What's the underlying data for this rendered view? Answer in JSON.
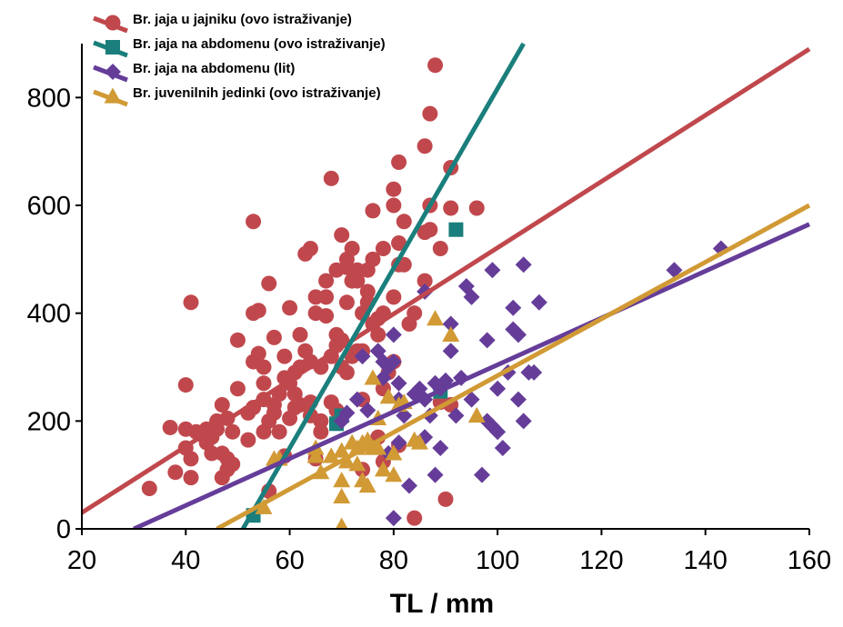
{
  "chart_data": {
    "type": "scatter",
    "title": "",
    "xlabel": "TL / mm",
    "ylabel": "",
    "xlim": [
      20,
      160
    ],
    "ylim": [
      0,
      900
    ],
    "xticks": [
      20,
      40,
      60,
      80,
      100,
      120,
      140,
      160
    ],
    "yticks": [
      0,
      200,
      400,
      600,
      800
    ],
    "grid": false,
    "legend_position": "top-left",
    "series": [
      {
        "name": "Br. jaja u jajniku (ovo istraživanje)",
        "color": "#c0484d",
        "marker": "circle",
        "fit": {
          "x": [
            20,
            160
          ],
          "y": [
            30,
            890
          ]
        },
        "points": [
          [
            33,
            75
          ],
          [
            37,
            188
          ],
          [
            38,
            105
          ],
          [
            40,
            150
          ],
          [
            40,
            185
          ],
          [
            40,
            267
          ],
          [
            41,
            130
          ],
          [
            41,
            420
          ],
          [
            41,
            95
          ],
          [
            42,
            180
          ],
          [
            43,
            175
          ],
          [
            44,
            160
          ],
          [
            44,
            185
          ],
          [
            45,
            170
          ],
          [
            45,
            140
          ],
          [
            46,
            185
          ],
          [
            46,
            200
          ],
          [
            47,
            230
          ],
          [
            47,
            140
          ],
          [
            47,
            95
          ],
          [
            48,
            205
          ],
          [
            48,
            130
          ],
          [
            48,
            110
          ],
          [
            49,
            180
          ],
          [
            49,
            120
          ],
          [
            50,
            260
          ],
          [
            50,
            350
          ],
          [
            52,
            215
          ],
          [
            52,
            165
          ],
          [
            53,
            225
          ],
          [
            53,
            310
          ],
          [
            53,
            400
          ],
          [
            53,
            570
          ],
          [
            54,
            405
          ],
          [
            54,
            325
          ],
          [
            55,
            270
          ],
          [
            55,
            300
          ],
          [
            55,
            180
          ],
          [
            56,
            455
          ],
          [
            56,
            200
          ],
          [
            56,
            70
          ],
          [
            57,
            215
          ],
          [
            57,
            355
          ],
          [
            57,
            230
          ],
          [
            58,
            180
          ],
          [
            58,
            250
          ],
          [
            59,
            280
          ],
          [
            59,
            135
          ],
          [
            60,
            410
          ],
          [
            60,
            270
          ],
          [
            60,
            205
          ],
          [
            61,
            225
          ],
          [
            61,
            290
          ],
          [
            62,
            300
          ],
          [
            62,
            360
          ],
          [
            62,
            230
          ],
          [
            63,
            510
          ],
          [
            63,
            330
          ],
          [
            64,
            310
          ],
          [
            64,
            235
          ],
          [
            64,
            210
          ],
          [
            64,
            520
          ],
          [
            65,
            400
          ],
          [
            65,
            430
          ],
          [
            66,
            300
          ],
          [
            66,
            200
          ],
          [
            66,
            180
          ],
          [
            67,
            395
          ],
          [
            67,
            430
          ],
          [
            67,
            460
          ],
          [
            68,
            650
          ],
          [
            68,
            235
          ],
          [
            68,
            320
          ],
          [
            69,
            340
          ],
          [
            69,
            360
          ],
          [
            69,
            220
          ],
          [
            69,
            480
          ],
          [
            70,
            545
          ],
          [
            70,
            300
          ],
          [
            70,
            350
          ],
          [
            71,
            290
          ],
          [
            71,
            420
          ],
          [
            71,
            500
          ],
          [
            71,
            485
          ],
          [
            72,
            460
          ],
          [
            72,
            520
          ],
          [
            72,
            460
          ],
          [
            72,
            320
          ],
          [
            73,
            480
          ],
          [
            73,
            330
          ],
          [
            74,
            240
          ],
          [
            74,
            330
          ],
          [
            74,
            110
          ],
          [
            74,
            400
          ],
          [
            75,
            420
          ],
          [
            75,
            440
          ],
          [
            75,
            480
          ],
          [
            76,
            380
          ],
          [
            76,
            590
          ],
          [
            76,
            500
          ],
          [
            77,
            360
          ],
          [
            77,
            390
          ],
          [
            78,
            400
          ],
          [
            78,
            260
          ],
          [
            78,
            520
          ],
          [
            79,
            290
          ],
          [
            80,
            630
          ],
          [
            80,
            430
          ],
          [
            80,
            310
          ],
          [
            80,
            600
          ],
          [
            81,
            490
          ],
          [
            81,
            530
          ],
          [
            81,
            680
          ],
          [
            82,
            490
          ],
          [
            82,
            570
          ],
          [
            83,
            380
          ],
          [
            84,
            20
          ],
          [
            84,
            400
          ],
          [
            86,
            550
          ],
          [
            86,
            710
          ],
          [
            86,
            460
          ],
          [
            87,
            600
          ],
          [
            87,
            770
          ],
          [
            87,
            555
          ],
          [
            88,
            860
          ],
          [
            89,
            520
          ],
          [
            91,
            670
          ],
          [
            91,
            230
          ],
          [
            91,
            595
          ],
          [
            96,
            595
          ],
          [
            89,
            235
          ],
          [
            90,
            55
          ],
          [
            78,
            125
          ],
          [
            81,
            155
          ],
          [
            77,
            170
          ],
          [
            73,
            460
          ],
          [
            61,
            250
          ],
          [
            59,
            320
          ],
          [
            55,
            240
          ],
          [
            65,
            130
          ]
        ]
      },
      {
        "name": "Br. jaja na abdomenu (ovo istraživanje)",
        "color": "#1a7f7c",
        "marker": "square",
        "fit": {
          "x": [
            51,
            105
          ],
          "y": [
            0,
            900
          ]
        },
        "points": [
          [
            53,
            25
          ],
          [
            69,
            195
          ],
          [
            70,
            210
          ],
          [
            92,
            555
          ],
          [
            89,
            255
          ]
        ]
      },
      {
        "name": "Br. jaja na abdomenu (lit)",
        "color": "#653d99",
        "marker": "diamond",
        "fit": {
          "x": [
            30,
            160
          ],
          "y": [
            0,
            565
          ]
        },
        "points": [
          [
            70,
            200
          ],
          [
            71,
            215
          ],
          [
            73,
            240
          ],
          [
            74,
            320
          ],
          [
            75,
            220
          ],
          [
            77,
            330
          ],
          [
            78,
            280
          ],
          [
            78,
            310
          ],
          [
            79,
            300
          ],
          [
            80,
            360
          ],
          [
            80,
            20
          ],
          [
            80,
            310
          ],
          [
            81,
            160
          ],
          [
            81,
            240
          ],
          [
            81,
            270
          ],
          [
            82,
            210
          ],
          [
            84,
            250
          ],
          [
            85,
            260
          ],
          [
            86,
            440
          ],
          [
            86,
            240
          ],
          [
            87,
            210
          ],
          [
            88,
            100
          ],
          [
            88,
            270
          ],
          [
            89,
            260
          ],
          [
            89,
            150
          ],
          [
            90,
            275
          ],
          [
            91,
            330
          ],
          [
            91,
            380
          ],
          [
            92,
            210
          ],
          [
            93,
            280
          ],
          [
            94,
            450
          ],
          [
            95,
            430
          ],
          [
            95,
            240
          ],
          [
            97,
            100
          ],
          [
            98,
            200
          ],
          [
            98,
            350
          ],
          [
            99,
            480
          ],
          [
            99,
            190
          ],
          [
            100,
            180
          ],
          [
            100,
            260
          ],
          [
            101,
            150
          ],
          [
            102,
            290
          ],
          [
            103,
            370
          ],
          [
            103,
            410
          ],
          [
            104,
            240
          ],
          [
            104,
            360
          ],
          [
            105,
            490
          ],
          [
            105,
            200
          ],
          [
            106,
            290
          ],
          [
            107,
            290
          ],
          [
            108,
            420
          ],
          [
            86,
            170
          ],
          [
            83,
            80
          ],
          [
            79,
            140
          ],
          [
            134,
            480
          ],
          [
            143,
            520
          ]
        ]
      },
      {
        "name": "Br. juvenilnih jedinki (ovo istraživanje)",
        "color": "#d19a35",
        "marker": "triangle",
        "fit": {
          "x": [
            46,
            160
          ],
          "y": [
            0,
            600
          ]
        },
        "points": [
          [
            55,
            40
          ],
          [
            57,
            130
          ],
          [
            58,
            130
          ],
          [
            65,
            150
          ],
          [
            65,
            135
          ],
          [
            66,
            105
          ],
          [
            68,
            135
          ],
          [
            70,
            145
          ],
          [
            70,
            60
          ],
          [
            70,
            90
          ],
          [
            70,
            5
          ],
          [
            71,
            125
          ],
          [
            72,
            160
          ],
          [
            73,
            150
          ],
          [
            73,
            120
          ],
          [
            74,
            90
          ],
          [
            74,
            160
          ],
          [
            75,
            155
          ],
          [
            75,
            80
          ],
          [
            75,
            165
          ],
          [
            76,
            150
          ],
          [
            76,
            280
          ],
          [
            77,
            205
          ],
          [
            77,
            150
          ],
          [
            78,
            110
          ],
          [
            79,
            245
          ],
          [
            80,
            100
          ],
          [
            80,
            140
          ],
          [
            81,
            230
          ],
          [
            82,
            235
          ],
          [
            84,
            165
          ],
          [
            85,
            160
          ],
          [
            88,
            390
          ],
          [
            91,
            360
          ],
          [
            96,
            210
          ]
        ]
      }
    ]
  }
}
